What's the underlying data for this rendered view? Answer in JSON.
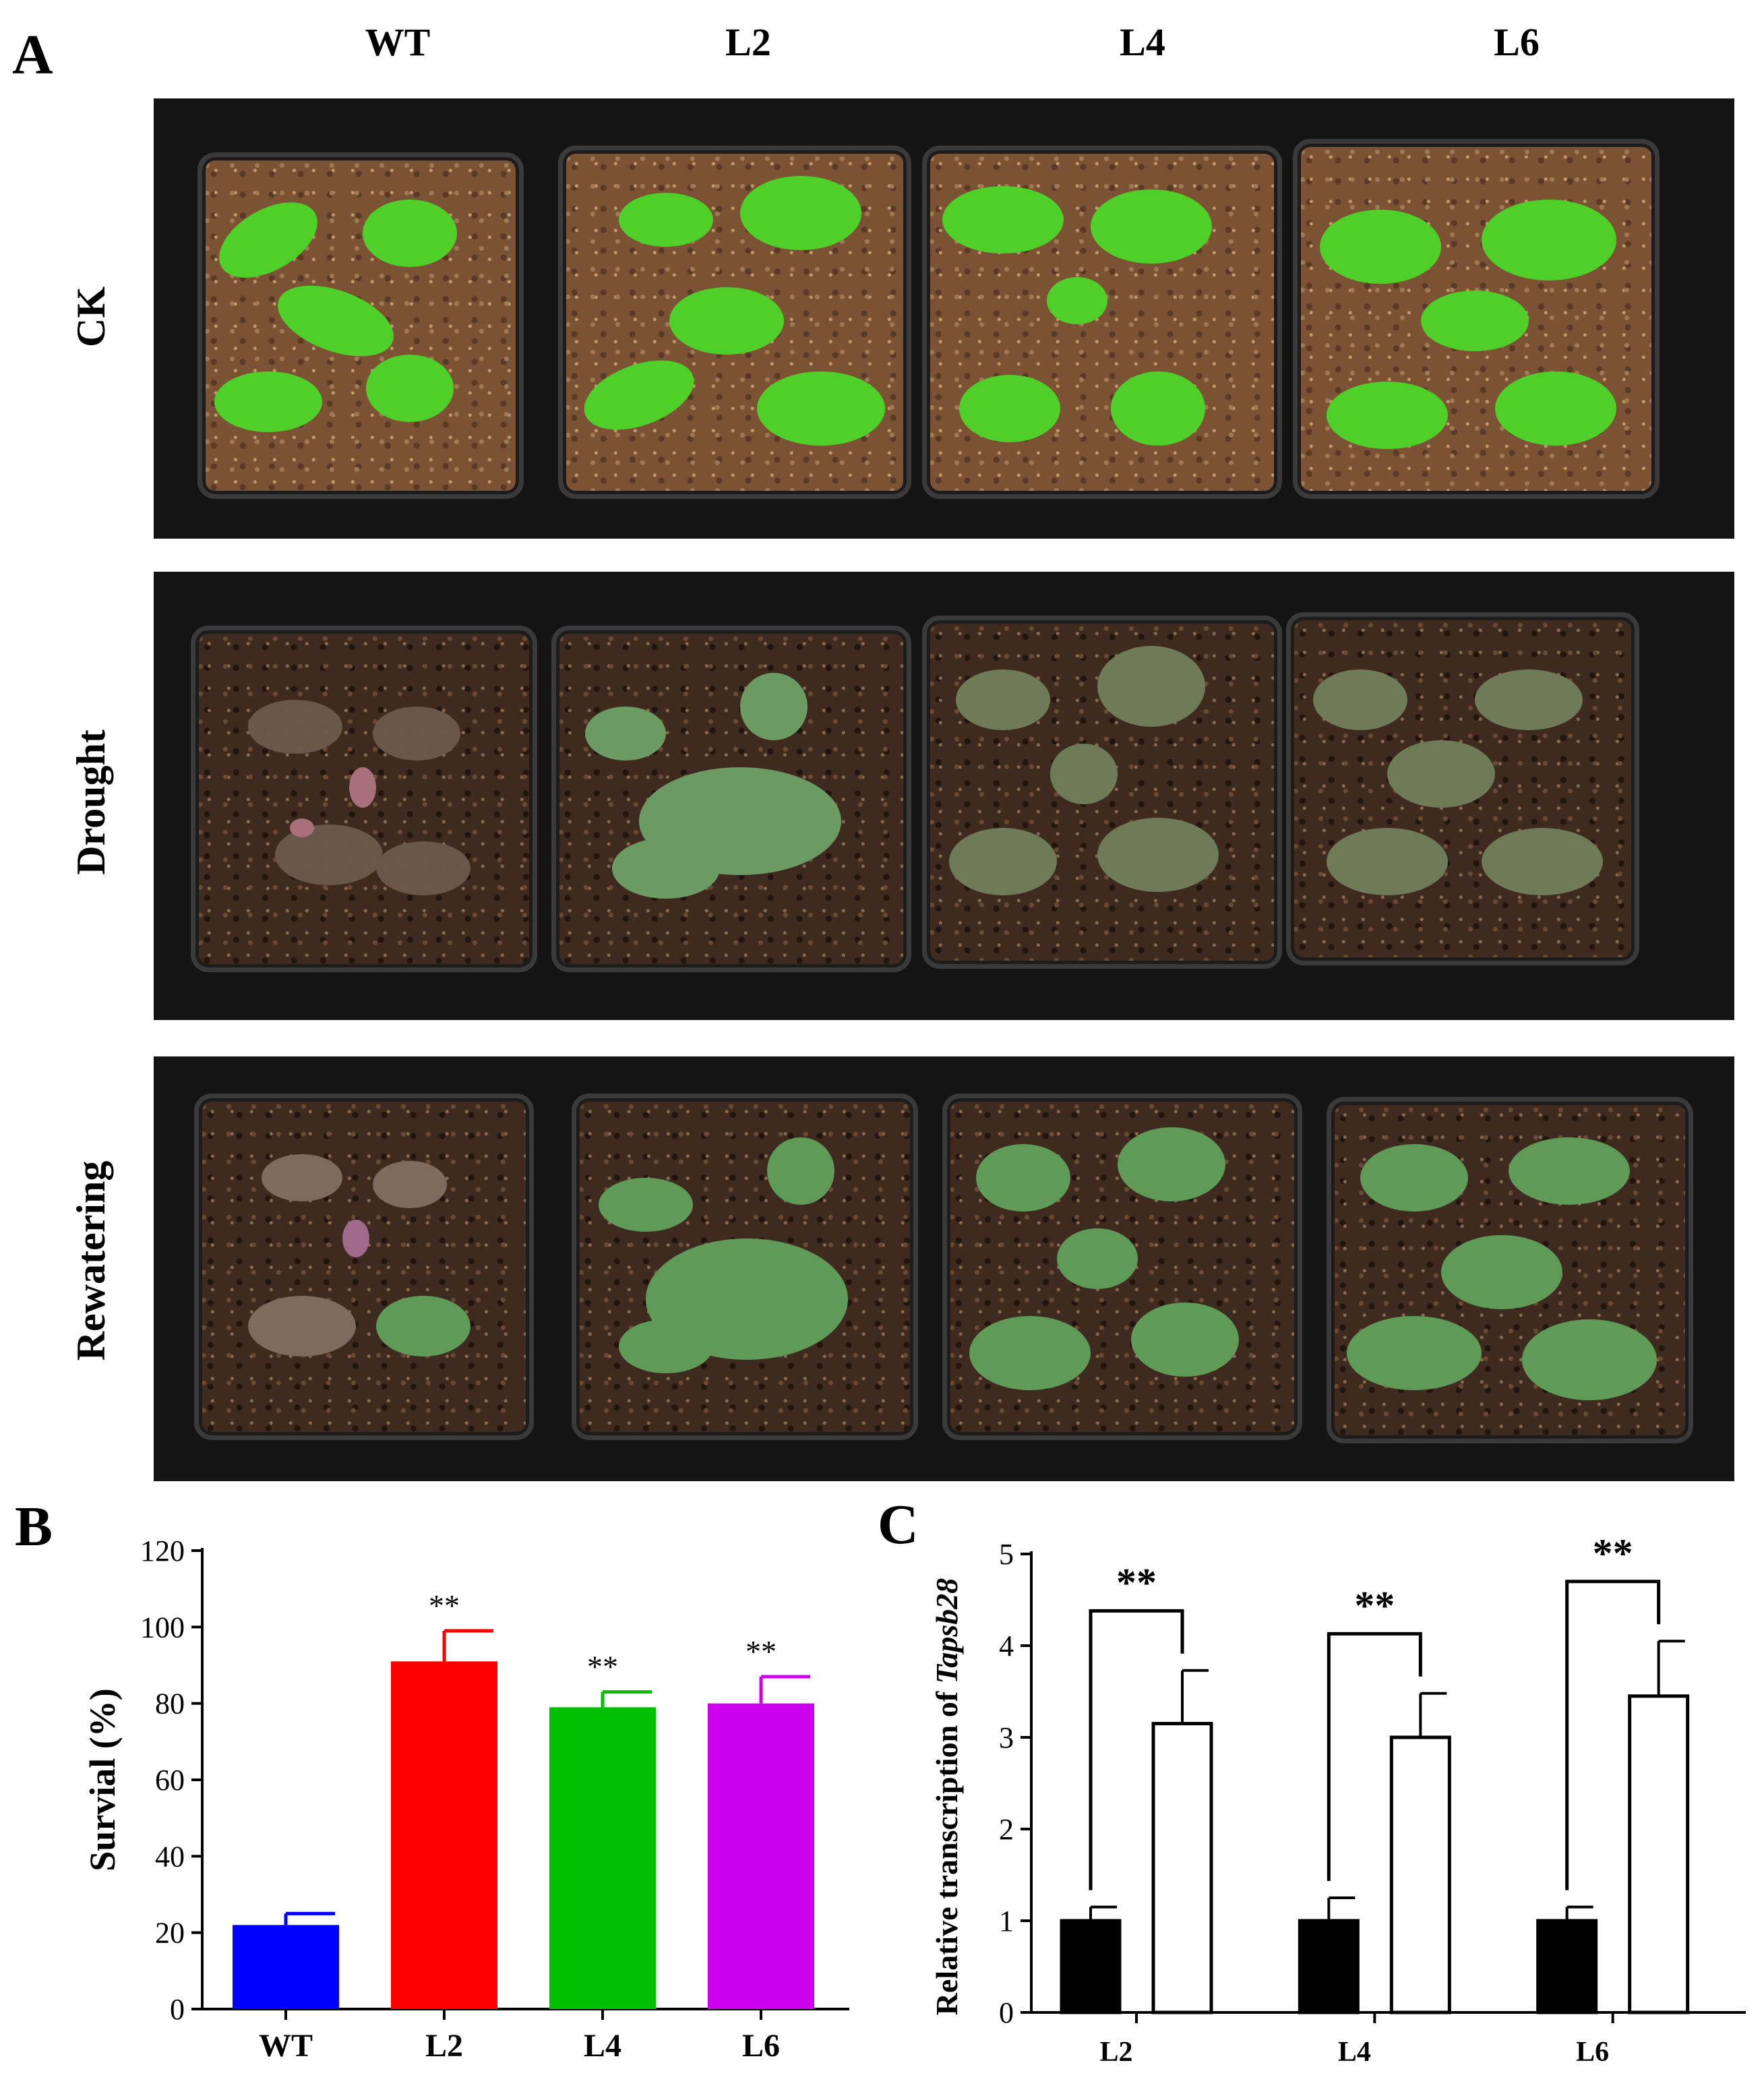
{
  "figure": {
    "panel_a": {
      "letter": "A",
      "columns": [
        "WT",
        "L2",
        "L4",
        "L6"
      ],
      "rows": [
        "CK",
        "Drought",
        "Rewatering"
      ]
    },
    "panel_b": {
      "letter": "B"
    },
    "panel_c": {
      "letter": "C"
    }
  },
  "chart_data": [
    {
      "type": "bar",
      "categories": [
        "WT",
        "L2",
        "L4",
        "L6"
      ],
      "values": [
        22,
        91,
        79,
        80
      ],
      "errors": [
        3,
        8,
        4,
        7
      ],
      "significance": [
        "",
        "**",
        "**",
        "**"
      ],
      "colors": [
        "#0000ff",
        "#ff0000",
        "#00c000",
        "#cc00ee"
      ],
      "xlabel": "",
      "ylabel": "Survial (%)",
      "ylim": [
        0,
        120
      ],
      "yticks": [
        0,
        20,
        40,
        60,
        80,
        100,
        120
      ]
    },
    {
      "type": "bar",
      "categories": [
        "L2",
        "L4",
        "L6"
      ],
      "series": [
        {
          "values": [
            1.0,
            1.0,
            1.0
          ],
          "errors": [
            0.15,
            0.25,
            0.15
          ],
          "fill": "#000000"
        },
        {
          "values": [
            3.15,
            3.0,
            3.45
          ],
          "errors": [
            0.58,
            0.48,
            0.6
          ],
          "fill": "#ffffff"
        }
      ],
      "significance": [
        "**",
        "**",
        "**"
      ],
      "ylabel_prefix": "Relative transcription of ",
      "ylabel_gene": "Tapsb28",
      "ylim": [
        0,
        5
      ],
      "yticks": [
        0,
        1,
        2,
        3,
        4,
        5
      ]
    }
  ]
}
